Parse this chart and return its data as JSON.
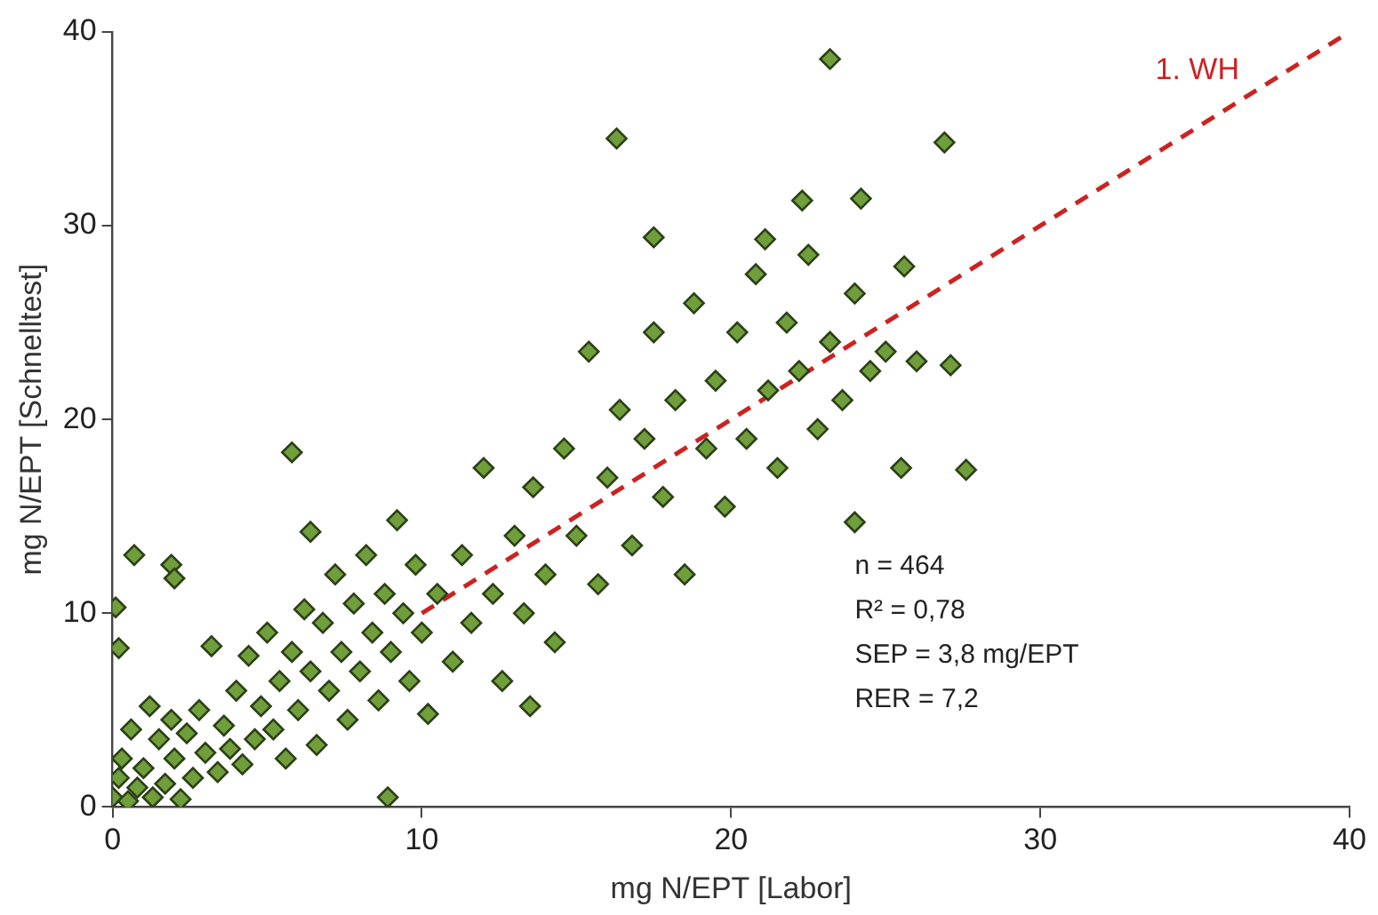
{
  "chart_data": {
    "type": "scatter",
    "xlabel": "mg N/EPT [Labor]",
    "ylabel": "mg N/EPT [Schnelltest]",
    "xlim": [
      0,
      40
    ],
    "ylim": [
      0,
      40
    ],
    "xticks": [
      0,
      10,
      20,
      30,
      40
    ],
    "yticks": [
      0,
      10,
      20,
      30,
      40
    ],
    "marker": "diamond",
    "annotations": [
      "n = 464",
      "R² = 0,78",
      "SEP = 3,8 mg/EPT",
      "RER = 7,2"
    ],
    "series": [
      {
        "color": "#6f9e3a",
        "x": [
          0,
          0.2,
          0.3,
          0.5,
          0.6,
          0.8,
          1,
          1.2,
          1.3,
          1.5,
          1.7,
          1.9,
          2,
          2.2,
          2.4,
          2.6,
          2.8,
          3,
          3.2,
          3.4,
          3.6,
          3.8,
          4,
          4.2,
          4.4,
          4.6,
          4.8,
          5,
          5.2,
          5.4,
          5.6,
          5.8,
          6,
          6.2,
          6.4,
          6.6,
          6.8,
          7,
          7.2,
          7.4,
          7.6,
          7.8,
          8,
          8.2,
          8.4,
          8.6,
          8.8,
          9,
          9.2,
          9.4,
          9.6,
          9.8,
          10,
          10.2,
          10.5,
          11,
          11.3,
          11.6,
          12,
          12.3,
          12.6,
          13,
          13.3,
          13.6,
          14,
          14.3,
          14.6,
          15,
          15.4,
          15.7,
          16,
          16.4,
          16.8,
          17.2,
          17.5,
          17.8,
          18.2,
          18.5,
          18.8,
          19.2,
          19.5,
          19.8,
          20.2,
          20.5,
          20.8,
          21.2,
          21.5,
          21.8,
          22.2,
          22.5,
          22.8,
          23.2,
          23.6,
          24,
          24.5,
          25,
          25.5,
          26,
          23.2,
          16.3,
          26.9,
          22.3,
          24.2,
          17.5,
          21.1,
          25.6,
          27.1,
          27.6,
          24,
          5.8,
          0.7,
          1.9,
          2,
          0.1,
          0.2,
          6.4,
          8.9,
          13.5
        ],
        "values": [
          0.5,
          1.5,
          2.5,
          0.3,
          4,
          1,
          2,
          5.2,
          0.5,
          3.5,
          1.2,
          4.5,
          2.5,
          0.4,
          3.8,
          1.5,
          5,
          2.8,
          8.3,
          1.8,
          4.2,
          3,
          6,
          2.2,
          7.8,
          3.5,
          5.2,
          9,
          4,
          6.5,
          2.5,
          8,
          5,
          10.2,
          7,
          3.2,
          9.5,
          6,
          12,
          8,
          4.5,
          10.5,
          7,
          13,
          9,
          5.5,
          11,
          8,
          14.8,
          10,
          6.5,
          12.5,
          9,
          4.8,
          11,
          7.5,
          13,
          9.5,
          17.5,
          11,
          6.5,
          14,
          10,
          16.5,
          12,
          8.5,
          18.5,
          14,
          23.5,
          11.5,
          17,
          20.5,
          13.5,
          19,
          24.5,
          16,
          21,
          12,
          26,
          18.5,
          22,
          15.5,
          24.5,
          19,
          27.5,
          21.5,
          17.5,
          25,
          22.5,
          28.5,
          19.5,
          24,
          21,
          26.5,
          22.5,
          23.5,
          17.5,
          23,
          38.6,
          34.5,
          34.3,
          31.3,
          31.4,
          29.4,
          29.3,
          27.9,
          22.8,
          17.4,
          14.7,
          18.3,
          13,
          12.5,
          11.8,
          10.3,
          8.2,
          14.2,
          0.5,
          5.2
        ]
      },
      {
        "type": "line",
        "name": "1. WH",
        "color": "#cc2222",
        "line_style": "dashed",
        "marker": "none",
        "x": [
          10,
          40
        ],
        "values": [
          10,
          40
        ]
      }
    ]
  }
}
